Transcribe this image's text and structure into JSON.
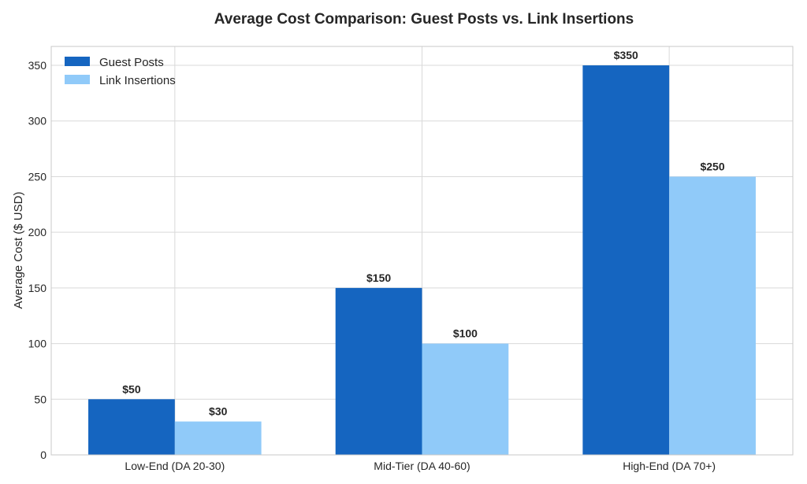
{
  "chart_data": {
    "type": "bar",
    "title": "Average Cost Comparison: Guest Posts vs. Link Insertions",
    "xlabel": "",
    "ylabel": "Average Cost ($ USD)",
    "categories": [
      "Low-End (DA 20-30)",
      "Mid-Tier (DA 40-60)",
      "High-End (DA 70+)"
    ],
    "series": [
      {
        "name": "Guest Posts",
        "values": [
          50,
          150,
          350
        ],
        "labels": [
          "$50",
          "$150",
          "$350"
        ],
        "color": "#1565c0"
      },
      {
        "name": "Link Insertions",
        "values": [
          30,
          100,
          250
        ],
        "labels": [
          "$30",
          "$100",
          "$250"
        ],
        "color": "#90caf9"
      }
    ],
    "yticks": [
      0,
      50,
      100,
      150,
      200,
      250,
      300,
      350
    ],
    "ylim": [
      0,
      367
    ],
    "grid": true,
    "legend": "top-left"
  }
}
